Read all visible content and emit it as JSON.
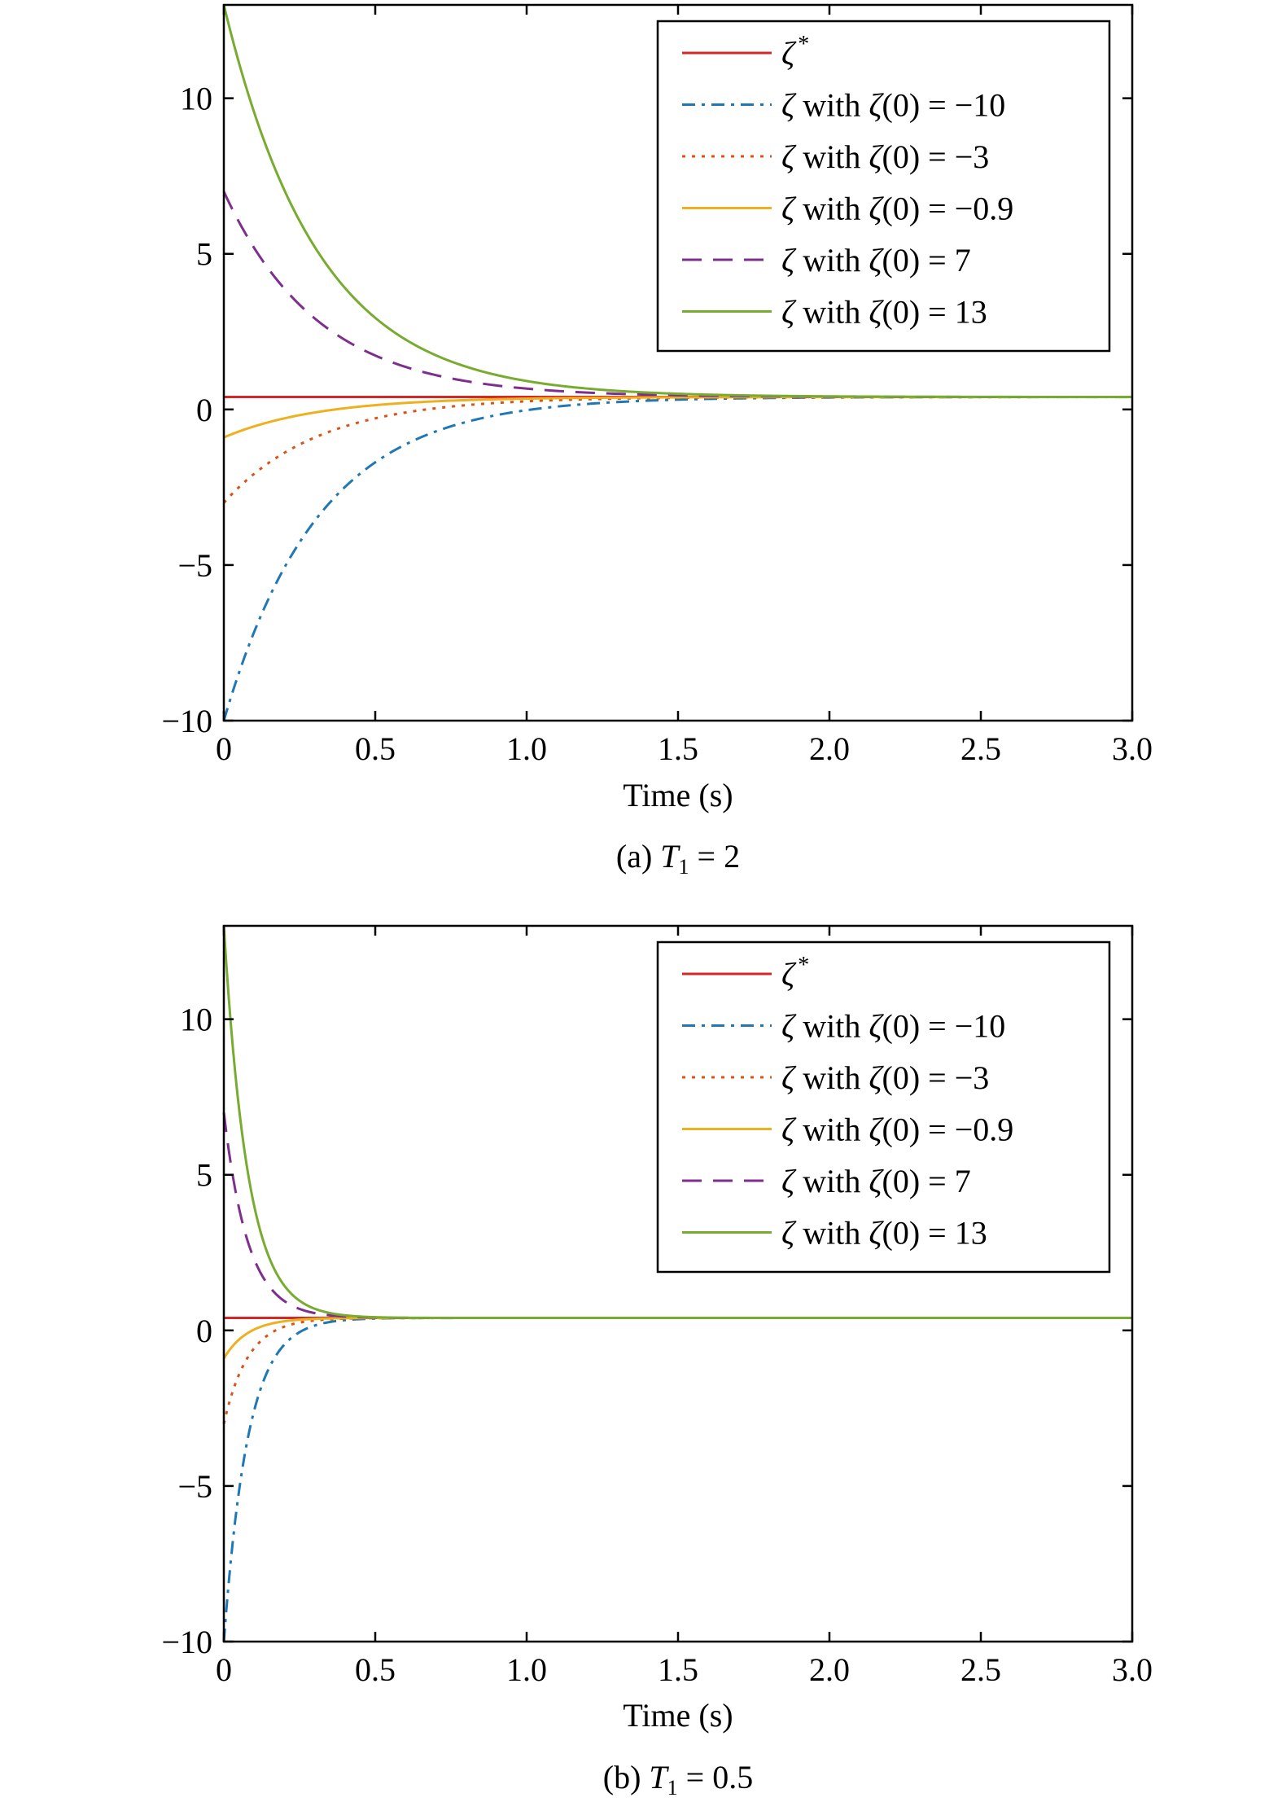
{
  "chart_data": [
    {
      "type": "line",
      "caption": {
        "prefix": "(a) ",
        "var": "T",
        "sub": "1",
        "suffix": " = 2"
      },
      "xlabel": "Time (s)",
      "ylabel": "",
      "xlim": [
        0,
        3
      ],
      "ylim": [
        -10,
        13
      ],
      "xticks": [
        0,
        0.5,
        1.0,
        1.5,
        2.0,
        2.5,
        3.0
      ],
      "xtick_labels": [
        "0",
        "0.5",
        "1.0",
        "1.5",
        "2.0",
        "2.5",
        "3.0"
      ],
      "yticks": [
        -10,
        -5,
        0,
        5,
        10
      ],
      "ytick_labels": [
        "−10",
        "−5",
        "0",
        "5",
        "10"
      ],
      "grid": false,
      "legend_position": "top-right",
      "steady_value": 0.4,
      "settling_rate": 3.2,
      "series": [
        {
          "name_sym": "ζ",
          "name_sup": "*",
          "name_rest": "",
          "kind": "constant",
          "value": 0.4,
          "color": "#d62728",
          "dash": "solid"
        },
        {
          "name_sym": "ζ",
          "name_sup": "",
          "name_rest": " with ζ(0) = −10",
          "kind": "decay",
          "initial": -10,
          "color": "#1f77b4",
          "dash": "dashdot"
        },
        {
          "name_sym": "ζ",
          "name_sup": "",
          "name_rest": " with ζ(0) = −3",
          "kind": "decay",
          "initial": -3,
          "color": "#d95319",
          "dash": "dotted"
        },
        {
          "name_sym": "ζ",
          "name_sup": "",
          "name_rest": " with ζ(0) = −0.9",
          "kind": "decay",
          "initial": -0.9,
          "color": "#edb120",
          "dash": "solid"
        },
        {
          "name_sym": "ζ",
          "name_sup": "",
          "name_rest": " with ζ(0) = 7",
          "kind": "decay",
          "initial": 7,
          "color": "#7e2f8e",
          "dash": "dashed"
        },
        {
          "name_sym": "ζ",
          "name_sup": "",
          "name_rest": " with ζ(0) = 13",
          "kind": "decay",
          "initial": 13,
          "color": "#77ac30",
          "dash": "solid"
        }
      ]
    },
    {
      "type": "line",
      "caption": {
        "prefix": "(b) ",
        "var": "T",
        "sub": "1",
        "suffix": " = 0.5"
      },
      "xlabel": "Time (s)",
      "ylabel": "",
      "xlim": [
        0,
        3
      ],
      "ylim": [
        -10,
        13
      ],
      "xticks": [
        0,
        0.5,
        1.0,
        1.5,
        2.0,
        2.5,
        3.0
      ],
      "xtick_labels": [
        "0",
        "0.5",
        "1.0",
        "1.5",
        "2.0",
        "2.5",
        "3.0"
      ],
      "yticks": [
        -10,
        -5,
        0,
        5,
        10
      ],
      "ytick_labels": [
        "−10",
        "−5",
        "0",
        "5",
        "10"
      ],
      "grid": false,
      "legend_position": "top-right",
      "steady_value": 0.4,
      "settling_rate": 12.5,
      "series": [
        {
          "name_sym": "ζ",
          "name_sup": "*",
          "name_rest": "",
          "kind": "constant",
          "value": 0.4,
          "color": "#d62728",
          "dash": "solid"
        },
        {
          "name_sym": "ζ",
          "name_sup": "",
          "name_rest": " with ζ(0) = −10",
          "kind": "decay",
          "initial": -10,
          "color": "#1f77b4",
          "dash": "dashdot"
        },
        {
          "name_sym": "ζ",
          "name_sup": "",
          "name_rest": " with ζ(0) = −3",
          "kind": "decay",
          "initial": -3,
          "color": "#d95319",
          "dash": "dotted"
        },
        {
          "name_sym": "ζ",
          "name_sup": "",
          "name_rest": " with ζ(0) = −0.9",
          "kind": "decay",
          "initial": -0.9,
          "color": "#edb120",
          "dash": "solid"
        },
        {
          "name_sym": "ζ",
          "name_sup": "",
          "name_rest": " with ζ(0) = 7",
          "kind": "decay",
          "initial": 7,
          "color": "#7e2f8e",
          "dash": "dashed"
        },
        {
          "name_sym": "ζ",
          "name_sup": "",
          "name_rest": " with ζ(0) = 13",
          "kind": "decay",
          "initial": 13,
          "color": "#77ac30",
          "dash": "solid"
        }
      ]
    }
  ]
}
